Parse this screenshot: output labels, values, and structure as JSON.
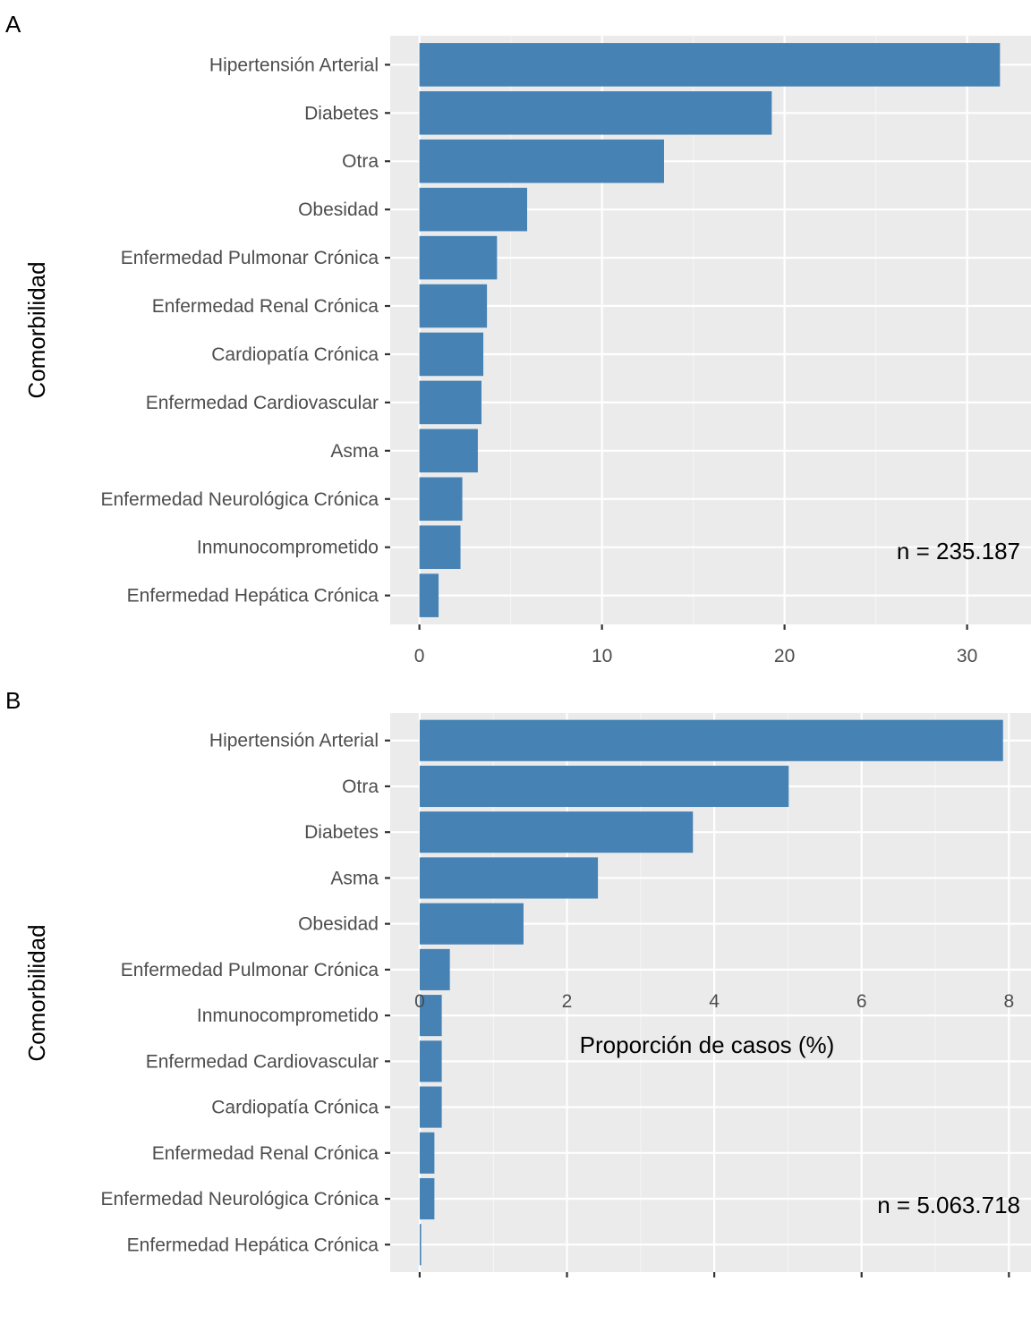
{
  "colors": {
    "bar": "#4682B4",
    "panel_bg": "#EBEBEB",
    "grid_major": "#FFFFFF",
    "grid_minor": "#F5F5F5",
    "tick_text": "#4D4D4D",
    "text": "#000000"
  },
  "chart_data": [
    {
      "type": "bar",
      "orientation": "horizontal",
      "panel_label": "A",
      "title": "",
      "xlabel": "",
      "ylabel": "Comorbilidad",
      "xlim": [
        -1.6,
        33.5
      ],
      "xticks": [
        0,
        10,
        20,
        30
      ],
      "xtick_labels": [
        "0",
        "10",
        "20",
        "30"
      ],
      "grid": true,
      "categories": [
        "Hipertensión Arterial",
        "Diabetes",
        "Otra",
        "Obesidad",
        "Enfermedad Pulmonar Crónica",
        "Enfermedad Renal Crónica",
        "Cardiopatía Crónica",
        "Enfermedad Cardiovascular",
        "Asma",
        "Enfermedad Neurológica Crónica",
        "Inmunocomprometido",
        "Enfermedad Hepática Crónica"
      ],
      "values": [
        31.8,
        19.3,
        13.4,
        5.9,
        4.25,
        3.7,
        3.5,
        3.4,
        3.2,
        2.35,
        2.25,
        1.05
      ],
      "annotation": "n =  235.187"
    },
    {
      "type": "bar",
      "orientation": "horizontal",
      "panel_label": "B",
      "title": "",
      "xlabel": "Proporción de casos (%)",
      "ylabel": "Comorbilidad",
      "xlim": [
        -0.4,
        8.3
      ],
      "xticks": [
        0,
        2,
        4,
        6,
        8
      ],
      "xtick_labels": [
        "0",
        "2",
        "4",
        "6",
        "8"
      ],
      "grid": true,
      "categories": [
        "Hipertensión Arterial",
        "Otra",
        "Diabetes",
        "Asma",
        "Obesidad",
        "Enfermedad Pulmonar Crónica",
        "Inmunocomprometido",
        "Enfermedad Cardiovascular",
        "Cardiopatía Crónica",
        "Enfermedad Renal Crónica",
        "Enfermedad Neurológica Crónica",
        "Enfermedad Hepática Crónica"
      ],
      "values": [
        7.92,
        5.01,
        3.71,
        2.42,
        1.41,
        0.41,
        0.3,
        0.3,
        0.3,
        0.2,
        0.2,
        0.02
      ],
      "annotation": "n =  5.063.718"
    }
  ]
}
